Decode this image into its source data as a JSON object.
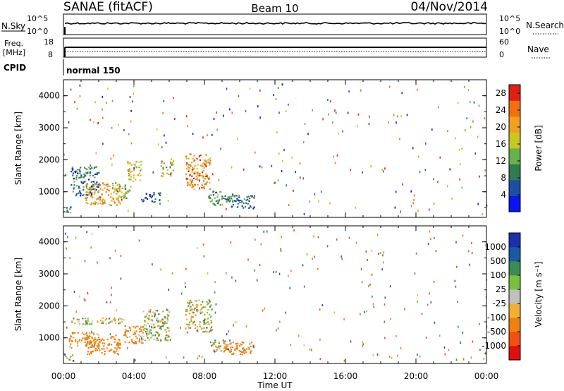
{
  "header": {
    "title": "SANAE (fitACF)",
    "beam": "Beam 10",
    "date": "04/Nov/2014"
  },
  "strips": {
    "nsky": {
      "label": "N.Sky",
      "ticks": [
        "10^5",
        "10^0"
      ],
      "right_label": "N.Search",
      "right_ticks": [
        "10^5",
        "10^0"
      ]
    },
    "freq": {
      "label_line1": "Freq.",
      "label_line2": "[MHz]",
      "ticks": [
        "18",
        "8"
      ],
      "right_label": "Nave",
      "right_ticks": [
        "60",
        "0"
      ]
    },
    "cpid": {
      "label": "CPID",
      "value": "normal 150"
    }
  },
  "colors": {
    "power_scale": [
      "#0a14f0",
      "#1c4fa0",
      "#2e7d50",
      "#6ab04c",
      "#c8c820",
      "#f0a020",
      "#f07010",
      "#e02010"
    ],
    "velocity_scale": [
      "#1a2fb0",
      "#1c5aa0",
      "#3e8a50",
      "#7ac040",
      "#c0c0c0",
      "#f0b030",
      "#f08010",
      "#f05010",
      "#e01010"
    ]
  },
  "chart_data": [
    {
      "type": "heatmap",
      "name": "power",
      "ylabel": "Slant Range [km]",
      "xlabel": "",
      "yticks": [
        "1000",
        "2000",
        "3000",
        "4000"
      ],
      "ylim": [
        200,
        4500
      ],
      "xlim": [
        0,
        24
      ],
      "colorbar": {
        "label": "Power [dB]",
        "ticks": [
          "4",
          "8",
          "12",
          "16",
          "20",
          "24",
          "28"
        ],
        "range": [
          0,
          30
        ]
      },
      "features": [
        {
          "t_start": 0.0,
          "t_end": 0.4,
          "range_start": 300,
          "range_end": 550,
          "value": 10
        },
        {
          "t_start": 0.4,
          "t_end": 2.0,
          "range_start": 900,
          "range_end": 1800,
          "value": 8
        },
        {
          "t_start": 1.2,
          "t_end": 3.2,
          "range_start": 600,
          "range_end": 1300,
          "value": 20
        },
        {
          "t_start": 3.0,
          "t_end": 3.8,
          "range_start": 800,
          "range_end": 1200,
          "value": 14
        },
        {
          "t_start": 3.6,
          "t_end": 4.4,
          "range_start": 1350,
          "range_end": 2000,
          "value": 17
        },
        {
          "t_start": 4.4,
          "t_end": 5.5,
          "range_start": 700,
          "range_end": 1000,
          "value": 8
        },
        {
          "t_start": 5.5,
          "t_end": 6.2,
          "range_start": 1500,
          "range_end": 2000,
          "value": 16
        },
        {
          "t_start": 6.9,
          "t_end": 8.3,
          "range_start": 1100,
          "range_end": 2200,
          "value": 22
        },
        {
          "t_start": 8.2,
          "t_end": 9.1,
          "range_start": 600,
          "range_end": 1050,
          "value": 10
        },
        {
          "t_start": 9.1,
          "t_end": 10.8,
          "range_start": 500,
          "range_end": 950,
          "value": 8
        }
      ]
    },
    {
      "type": "heatmap",
      "name": "velocity",
      "ylabel": "Slant Range [km]",
      "xlabel": "Time UT",
      "yticks": [
        "1000",
        "2000",
        "3000",
        "4000"
      ],
      "xticks": [
        "00:00",
        "04:00",
        "08:00",
        "12:00",
        "16:00",
        "20:00",
        "00:00"
      ],
      "ylim": [
        200,
        4500
      ],
      "xlim": [
        0,
        24
      ],
      "colorbar": {
        "label": "Velocity [m s⁻¹]",
        "ticks": [
          "1000",
          "500",
          "100",
          "25",
          "-25",
          "-100",
          "-500",
          "-1000"
        ],
        "range": [
          -1000,
          1000
        ]
      },
      "features": [
        {
          "t_start": 0.0,
          "t_end": 0.5,
          "range_start": 300,
          "range_end": 550,
          "value": 0
        },
        {
          "t_start": 0.3,
          "t_end": 2.0,
          "range_start": 700,
          "range_end": 1200,
          "value": -200
        },
        {
          "t_start": 1.2,
          "t_end": 3.2,
          "range_start": 500,
          "range_end": 1100,
          "value": -300
        },
        {
          "t_start": 0.3,
          "t_end": 3.4,
          "range_start": 1450,
          "range_end": 1650,
          "value": 0
        },
        {
          "t_start": 3.4,
          "t_end": 4.5,
          "range_start": 800,
          "range_end": 1400,
          "value": -200
        },
        {
          "t_start": 4.5,
          "t_end": 6.0,
          "range_start": 900,
          "range_end": 1900,
          "value": 50
        },
        {
          "t_start": 6.9,
          "t_end": 8.4,
          "range_start": 1200,
          "range_end": 2200,
          "value": 0
        },
        {
          "t_start": 8.3,
          "t_end": 9.3,
          "range_start": 600,
          "range_end": 1000,
          "value": 0
        },
        {
          "t_start": 9.0,
          "t_end": 10.8,
          "range_start": 500,
          "range_end": 900,
          "value": -300
        }
      ]
    }
  ]
}
